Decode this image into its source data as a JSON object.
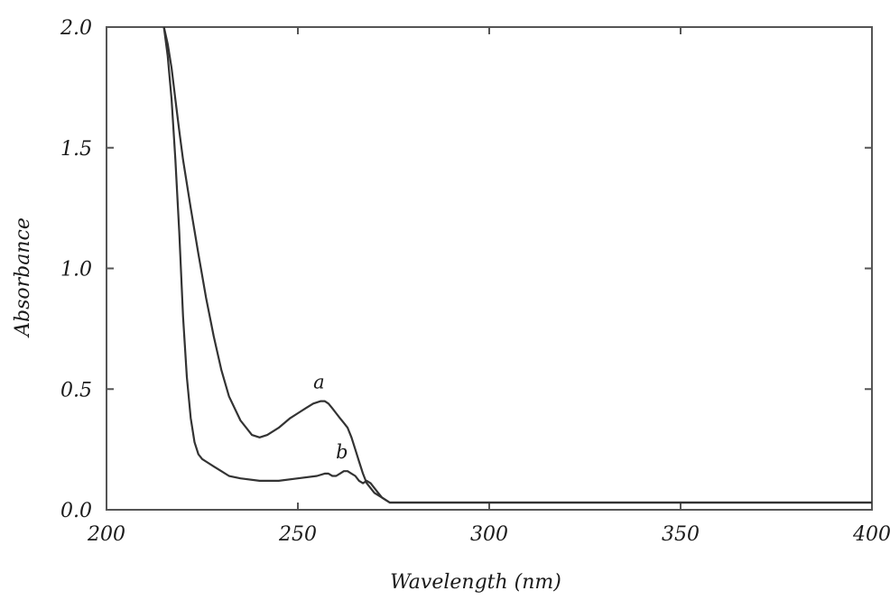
{
  "chart_data": {
    "type": "line",
    "xlabel": "Wavelength (nm)",
    "ylabel": "Absorbance",
    "xlim": [
      200,
      400
    ],
    "ylim": [
      0.0,
      2.0
    ],
    "x_ticks": [
      "200",
      "250",
      "300",
      "350",
      "400"
    ],
    "y_ticks": [
      "0.0",
      "0.5",
      "1.0",
      "1.5",
      "2.0"
    ],
    "grid": false,
    "series": [
      {
        "name": "a",
        "color": "#333333",
        "x": [
          215,
          216,
          217,
          218,
          219,
          220,
          222,
          224,
          226,
          228,
          230,
          232,
          235,
          238,
          240,
          242,
          245,
          248,
          250,
          252,
          254,
          256,
          257,
          258,
          259,
          260,
          261,
          262,
          263,
          264,
          265,
          266,
          267,
          268,
          270,
          272,
          274,
          276,
          280,
          290,
          300,
          325,
          350,
          375,
          400
        ],
        "y": [
          2.0,
          1.93,
          1.83,
          1.7,
          1.57,
          1.45,
          1.25,
          1.06,
          0.88,
          0.72,
          0.58,
          0.47,
          0.37,
          0.31,
          0.3,
          0.31,
          0.34,
          0.38,
          0.4,
          0.42,
          0.44,
          0.45,
          0.45,
          0.44,
          0.42,
          0.4,
          0.38,
          0.36,
          0.34,
          0.3,
          0.25,
          0.2,
          0.15,
          0.11,
          0.07,
          0.05,
          0.03,
          0.03,
          0.03,
          0.03,
          0.03,
          0.03,
          0.03,
          0.03,
          0.03
        ]
      },
      {
        "name": "b",
        "color": "#333333",
        "x": [
          215,
          216,
          217,
          218,
          219,
          220,
          221,
          222,
          223,
          224,
          225,
          226,
          228,
          230,
          232,
          235,
          240,
          245,
          250,
          255,
          257,
          258,
          259,
          260,
          261,
          262,
          263,
          264,
          265,
          266,
          267,
          268,
          269,
          270,
          271,
          272,
          274,
          276,
          280,
          290,
          300,
          325,
          350,
          375,
          400
        ],
        "y": [
          2.0,
          1.88,
          1.7,
          1.45,
          1.15,
          0.8,
          0.55,
          0.38,
          0.28,
          0.23,
          0.21,
          0.2,
          0.18,
          0.16,
          0.14,
          0.13,
          0.12,
          0.12,
          0.13,
          0.14,
          0.15,
          0.15,
          0.14,
          0.14,
          0.15,
          0.16,
          0.16,
          0.15,
          0.14,
          0.12,
          0.11,
          0.12,
          0.11,
          0.09,
          0.07,
          0.05,
          0.03,
          0.03,
          0.03,
          0.03,
          0.03,
          0.03,
          0.03,
          0.03,
          0.03
        ]
      }
    ]
  }
}
